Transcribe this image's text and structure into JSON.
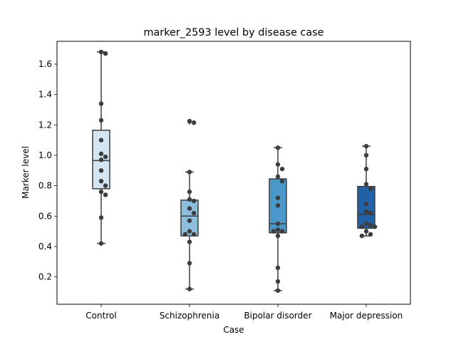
{
  "chart_data": {
    "type": "box",
    "title": "marker_2593 level by disease case",
    "xlabel": "Case",
    "ylabel": "Marker level",
    "ylim": [
      0.02,
      1.75
    ],
    "yticks": [
      0.2,
      0.4,
      0.6,
      0.8,
      1.0,
      1.2,
      1.4,
      1.6
    ],
    "ytick_labels": [
      "0.2",
      "0.4",
      "0.6",
      "0.8",
      "1.0",
      "1.2",
      "1.4",
      "1.6"
    ],
    "categories": [
      "Control",
      "Schizophrenia",
      "Bipolar disorder",
      "Major depression"
    ],
    "colors": [
      "#d3e4f3",
      "#8cbfdd",
      "#4a98c9",
      "#2261a8"
    ],
    "edge_color": "#3d3d3d",
    "point_color": "#3d3d3d",
    "boxes": [
      {
        "min": 0.42,
        "q1": 0.78,
        "median": 0.965,
        "q3": 1.165,
        "max": 1.68,
        "outliers": []
      },
      {
        "min": 0.12,
        "q1": 0.47,
        "median": 0.6,
        "q3": 0.705,
        "max": 0.89,
        "outliers": [
          1.22
        ]
      },
      {
        "min": 0.11,
        "q1": 0.49,
        "median": 0.55,
        "q3": 0.845,
        "max": 1.05,
        "outliers": []
      },
      {
        "min": 0.47,
        "q1": 0.52,
        "median": 0.61,
        "q3": 0.795,
        "max": 1.06,
        "outliers": []
      }
    ],
    "points": [
      [
        1.68,
        1.67,
        1.34,
        1.23,
        1.1,
        1.01,
        0.99,
        0.97,
        0.9,
        0.83,
        0.8,
        0.76,
        0.74,
        0.59,
        0.42
      ],
      [
        1.225,
        1.215,
        0.89,
        0.76,
        0.71,
        0.7,
        0.65,
        0.62,
        0.57,
        0.5,
        0.48,
        0.48,
        0.43,
        0.29,
        0.12
      ],
      [
        1.05,
        0.94,
        0.91,
        0.86,
        0.83,
        0.72,
        0.67,
        0.55,
        0.51,
        0.5,
        0.5,
        0.47,
        0.26,
        0.17,
        0.11
      ],
      [
        1.06,
        1.0,
        0.91,
        0.81,
        0.78,
        0.68,
        0.63,
        0.62,
        0.55,
        0.54,
        0.53,
        0.53,
        0.5,
        0.48,
        0.47
      ]
    ]
  }
}
